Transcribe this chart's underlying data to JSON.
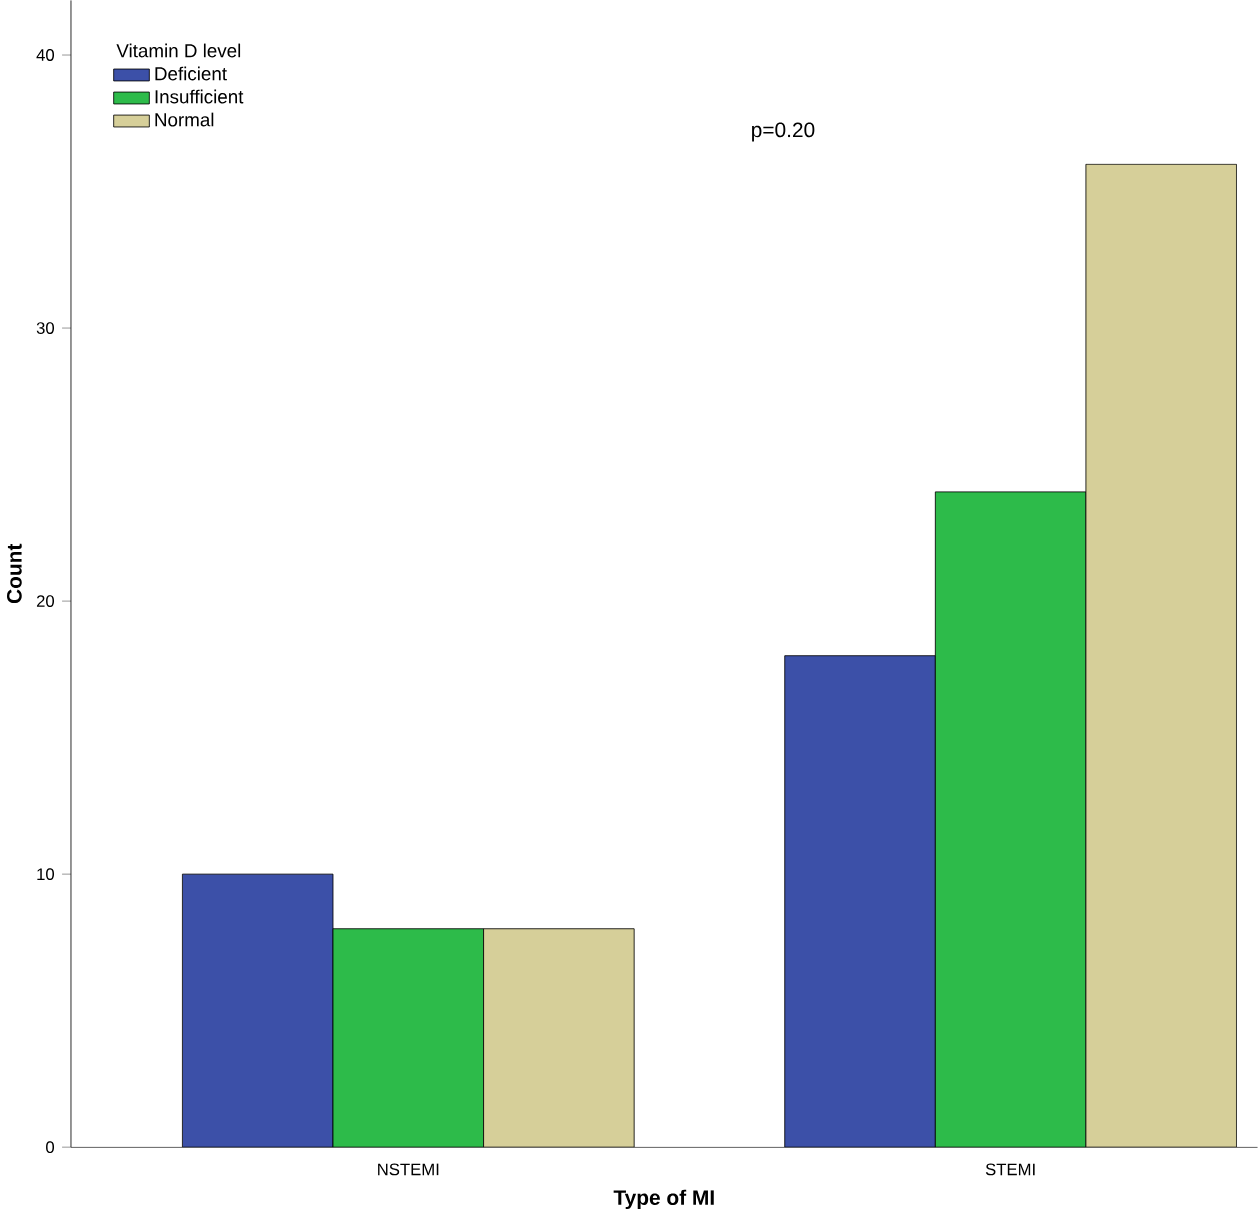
{
  "chart_data": {
    "type": "bar",
    "xlabel": "Type of MI",
    "ylabel": "Count",
    "legend_title": "Vitamin D level",
    "categories": [
      "NSTEMI",
      "STEMI"
    ],
    "series": [
      {
        "name": "Deficient",
        "color": "#3c50a8",
        "values": [
          10,
          18
        ]
      },
      {
        "name": "Insufficient",
        "color": "#2dbb4a",
        "values": [
          8,
          24
        ]
      },
      {
        "name": "Normal",
        "color": "#d6cf99",
        "values": [
          8,
          36
        ]
      }
    ],
    "ylim": [
      0,
      42
    ],
    "yticks": [
      0,
      10,
      20,
      30,
      40
    ],
    "grid": false,
    "legend": "top left",
    "annotations": [
      "p=0.20"
    ]
  }
}
